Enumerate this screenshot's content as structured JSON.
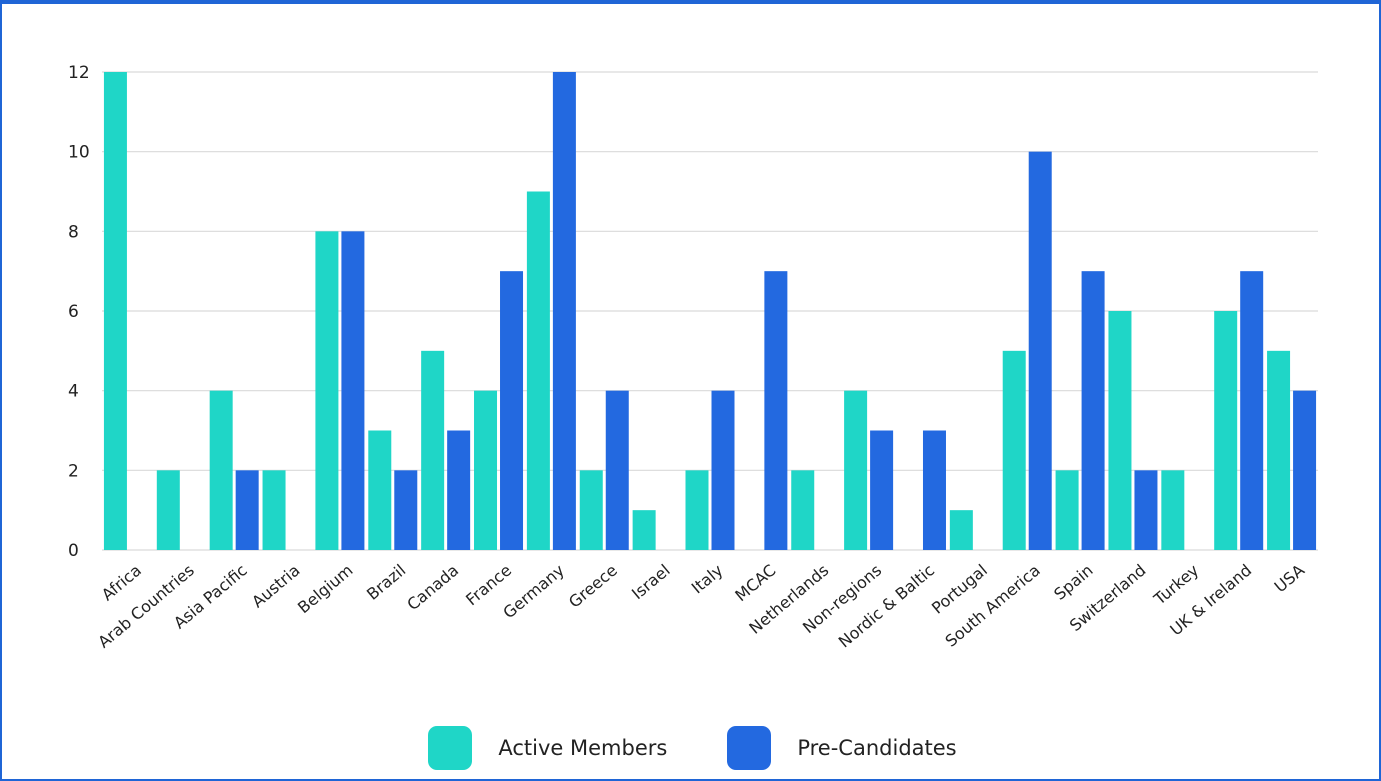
{
  "colors": {
    "active": "#1fd6c7",
    "pre": "#2369e0",
    "grid": "#d9d9d9",
    "frame": "#1f65d6"
  },
  "legend": {
    "active_label": "Active Members",
    "pre_label": "Pre-Candidates"
  },
  "chart_data": {
    "type": "bar",
    "title": "",
    "xlabel": "",
    "ylabel": "",
    "ylim": [
      0,
      12
    ],
    "yticks": [
      0,
      2,
      4,
      6,
      8,
      10,
      12
    ],
    "grid": true,
    "legend_position": "bottom",
    "categories": [
      "Africa",
      "Arab Countries",
      "Asia Pacific",
      "Austria",
      "Belgium",
      "Brazil",
      "Canada",
      "France",
      "Germany",
      "Greece",
      "Israel",
      "Italy",
      "MCAC",
      "Netherlands",
      "Non-regions",
      "Nordic & Baltic",
      "Portugal",
      "South America",
      "Spain",
      "Switzerland",
      "Turkey",
      "UK & Ireland",
      "USA"
    ],
    "series": [
      {
        "name": "Active Members",
        "values": [
          12,
          2,
          4,
          2,
          8,
          3,
          5,
          4,
          9,
          2,
          1,
          2,
          0,
          2,
          4,
          0,
          1,
          5,
          2,
          6,
          2,
          6,
          5
        ]
      },
      {
        "name": "Pre-Candidates",
        "values": [
          0,
          0,
          2,
          0,
          8,
          2,
          3,
          7,
          12,
          4,
          0,
          4,
          7,
          0,
          3,
          3,
          0,
          10,
          7,
          2,
          0,
          7,
          4
        ]
      }
    ]
  }
}
